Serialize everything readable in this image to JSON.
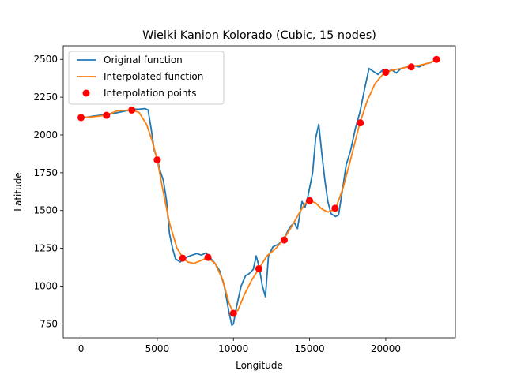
{
  "chart_data": {
    "type": "line",
    "title": "Wielki Kanion Kolorado (Cubic, 15 nodes)",
    "xlabel": "Longitude",
    "ylabel": "Latitude",
    "xlim": [
      -1170,
      24570
    ],
    "ylim": [
      658,
      2590
    ],
    "xticks": [
      0,
      5000,
      10000,
      15000,
      20000
    ],
    "yticks": [
      750,
      1000,
      1250,
      1500,
      1750,
      2000,
      2250,
      2500
    ],
    "grid": false,
    "legend": {
      "placement": "top-left",
      "entries": [
        "Original function",
        "Interpolated function",
        "Interpolation points"
      ]
    },
    "colors": {
      "original": "#1f77b4",
      "interpolated": "#ff7f0e",
      "points": "#ff0000"
    },
    "series": [
      {
        "name": "Original function",
        "x": [
          0,
          400,
          800,
          1200,
          1600,
          2000,
          2500,
          3000,
          3400,
          3800,
          4200,
          4400,
          4600,
          4800,
          5000,
          5200,
          5400,
          5600,
          5800,
          6000,
          6200,
          6500,
          6700,
          7000,
          7300,
          7600,
          7900,
          8200,
          8500,
          8800,
          9100,
          9400,
          9700,
          9900,
          10000,
          10200,
          10500,
          10800,
          11000,
          11300,
          11500,
          11700,
          11900,
          12100,
          12300,
          12600,
          13000,
          13400,
          13700,
          14000,
          14200,
          14500,
          14700,
          14900,
          15200,
          15400,
          15600,
          15800,
          16000,
          16200,
          16400,
          16700,
          16900,
          17100,
          17400,
          17700,
          18000,
          18300,
          18600,
          18900,
          19200,
          19500,
          19800,
          20100,
          20400,
          20700,
          21000,
          21400,
          21800,
          22200,
          22600,
          23000,
          23300
        ],
        "y": [
          2115,
          2118,
          2125,
          2130,
          2135,
          2140,
          2150,
          2160,
          2170,
          2170,
          2175,
          2165,
          2040,
          1900,
          1840,
          1760,
          1700,
          1570,
          1350,
          1250,
          1180,
          1160,
          1175,
          1195,
          1205,
          1215,
          1205,
          1220,
          1185,
          1150,
          1100,
          1000,
          830,
          740,
          750,
          860,
          1000,
          1070,
          1080,
          1110,
          1200,
          1120,
          1000,
          930,
          1200,
          1260,
          1280,
          1330,
          1390,
          1420,
          1380,
          1560,
          1520,
          1600,
          1750,
          1980,
          2070,
          1880,
          1700,
          1560,
          1480,
          1460,
          1470,
          1600,
          1800,
          1900,
          2040,
          2150,
          2300,
          2440,
          2420,
          2400,
          2430,
          2420,
          2430,
          2410,
          2440,
          2450,
          2460,
          2450,
          2470,
          2480,
          2500
        ]
      },
      {
        "name": "Interpolated function",
        "x": [
          0,
          800,
          1600,
          2400,
          3300,
          3800,
          4300,
          4700,
          5000,
          5400,
          5800,
          6300,
          6700,
          7000,
          7400,
          7900,
          8300,
          8800,
          9300,
          9700,
          10000,
          10300,
          10700,
          11200,
          11700,
          12200,
          12800,
          13300,
          13800,
          14300,
          14700,
          15000,
          15400,
          15800,
          16200,
          16700,
          17200,
          17700,
          18300,
          18800,
          19300,
          19800,
          20000,
          20500,
          21000,
          21700,
          22200,
          22800,
          23300
        ],
        "y": [
          2115,
          2120,
          2130,
          2160,
          2165,
          2150,
          2070,
          1950,
          1835,
          1620,
          1420,
          1250,
          1185,
          1160,
          1150,
          1170,
          1190,
          1150,
          1040,
          890,
          820,
          840,
          940,
          1040,
          1120,
          1200,
          1250,
          1310,
          1390,
          1480,
          1545,
          1565,
          1550,
          1510,
          1490,
          1510,
          1650,
          1840,
          2080,
          2230,
          2340,
          2400,
          2415,
          2430,
          2440,
          2455,
          2460,
          2475,
          2495
        ]
      },
      {
        "name": "Interpolation points",
        "x": [
          0,
          1670,
          3330,
          5000,
          6670,
          8330,
          10000,
          11670,
          13330,
          15000,
          16670,
          18330,
          20000,
          21670,
          23330
        ],
        "y": [
          2115,
          2130,
          2165,
          1835,
          1185,
          1190,
          820,
          1115,
          1305,
          1565,
          1515,
          2080,
          2415,
          2450,
          2500
        ]
      }
    ]
  }
}
